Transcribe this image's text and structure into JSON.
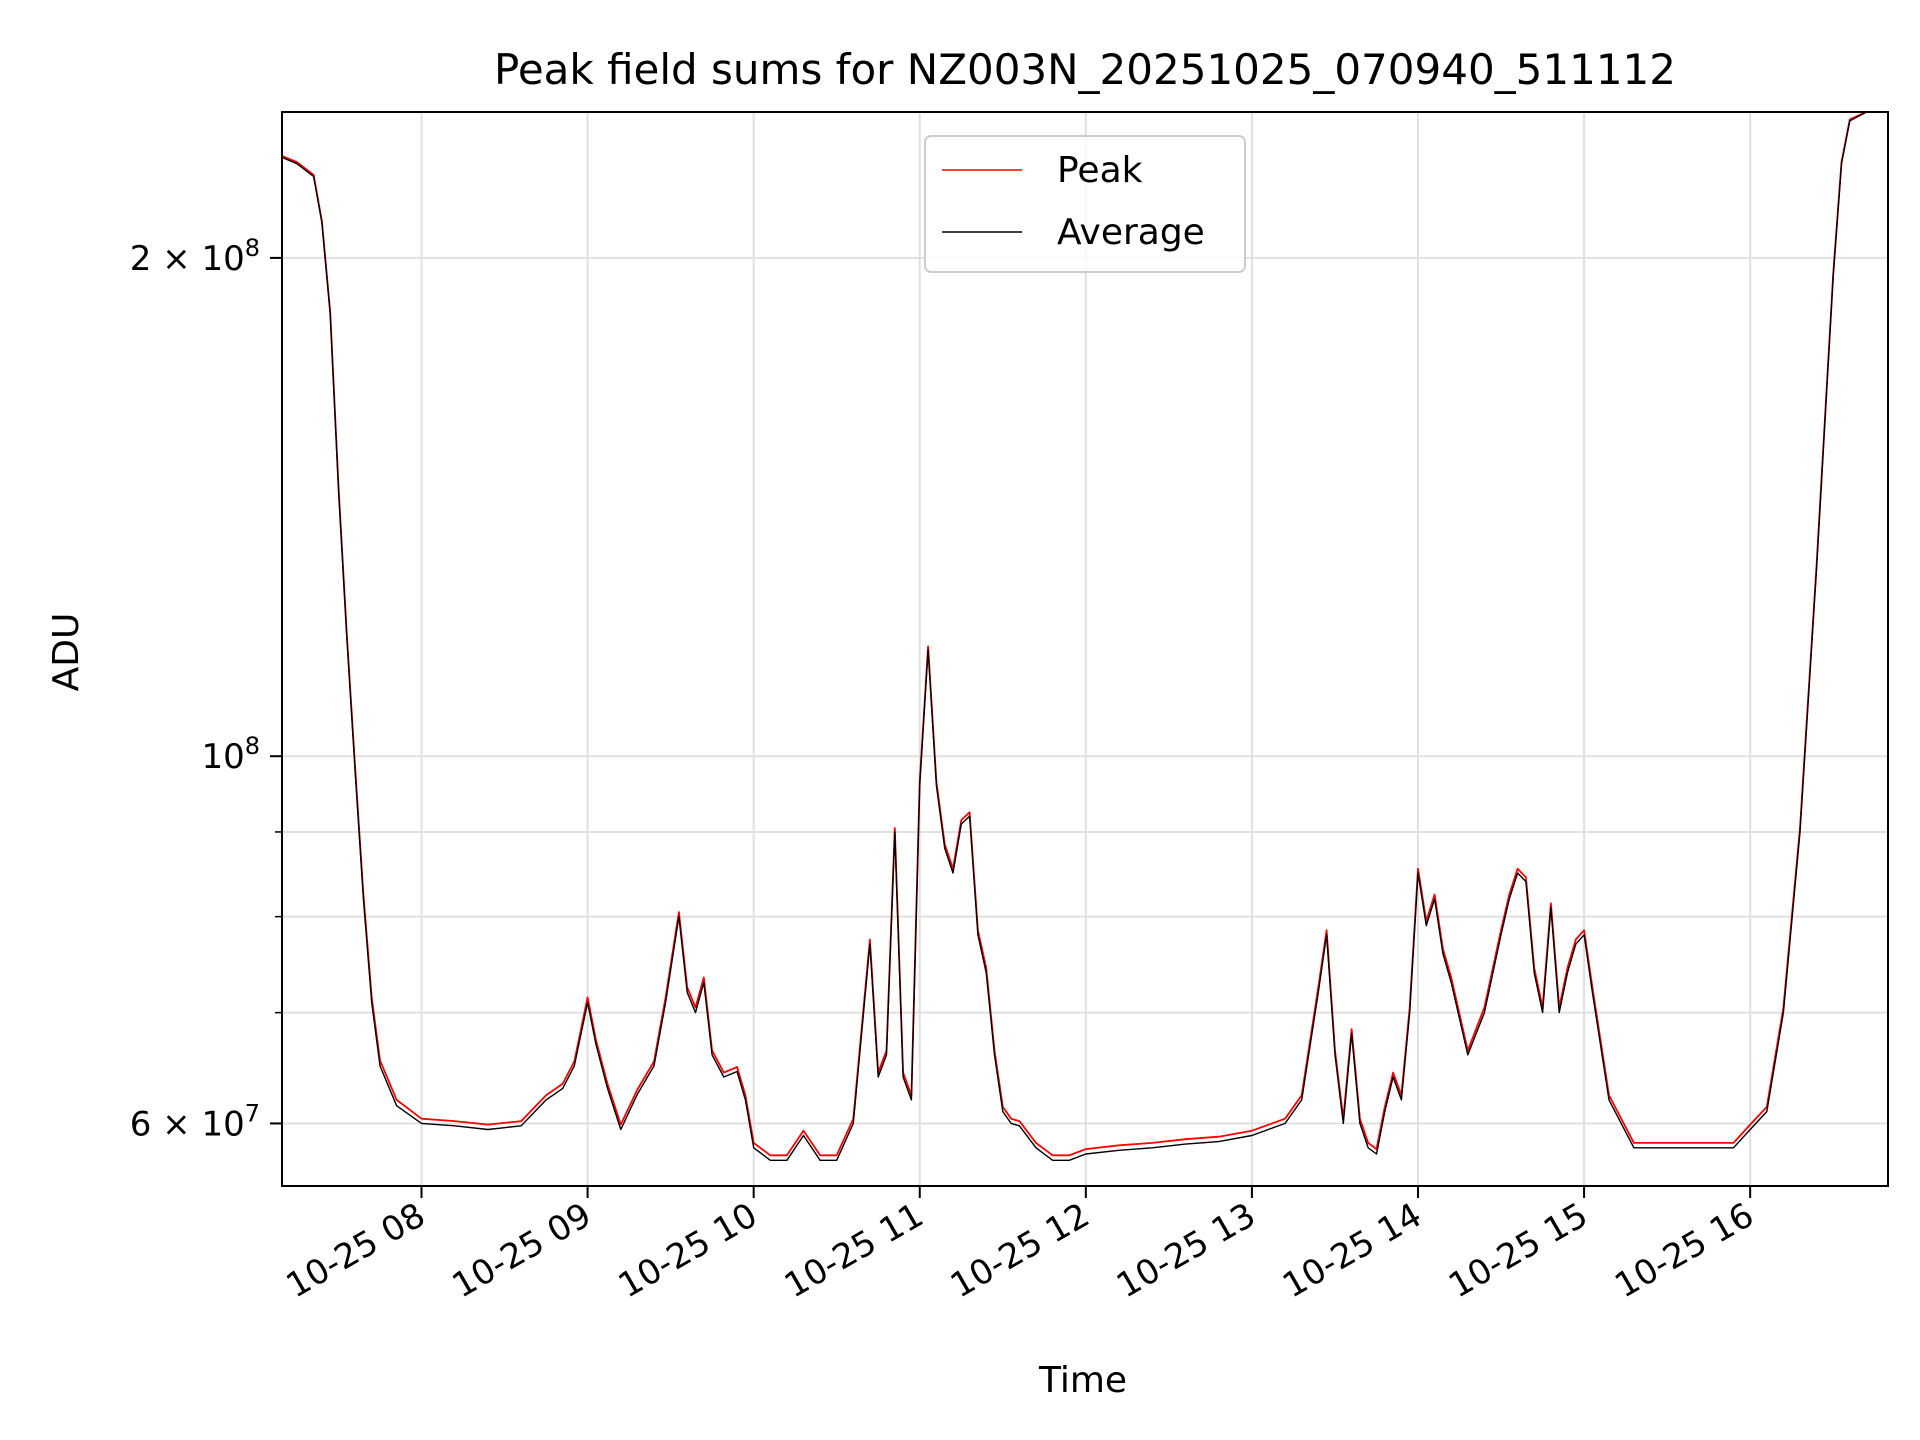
{
  "chart_data": {
    "type": "line",
    "title": "Peak field sums for NZ003N_20251025_070940_511112",
    "xlabel": "Time",
    "ylabel": "ADU",
    "yscale": "log",
    "ylim": [
      55000000,
      245000000
    ],
    "xlim_hours": [
      7.16,
      16.83
    ],
    "grid": true,
    "legend_position": "upper center",
    "legend": [
      "Peak",
      "Average"
    ],
    "x_ticks": [
      {
        "hour": 8,
        "label": "10-25 08"
      },
      {
        "hour": 9,
        "label": "10-25 09"
      },
      {
        "hour": 10,
        "label": "10-25 10"
      },
      {
        "hour": 11,
        "label": "10-25 11"
      },
      {
        "hour": 12,
        "label": "10-25 12"
      },
      {
        "hour": 13,
        "label": "10-25 13"
      },
      {
        "hour": 14,
        "label": "10-25 14"
      },
      {
        "hour": 15,
        "label": "10-25 15"
      },
      {
        "hour": 16,
        "label": "10-25 16"
      }
    ],
    "y_major_ticks": [
      {
        "value": 100000000,
        "mantissa": "",
        "base": "10",
        "exp": "8"
      },
      {
        "value": 200000000,
        "mantissa": "2 × ",
        "base": "10",
        "exp": "8"
      },
      {
        "value": 60000000,
        "mantissa": "6 × ",
        "base": "10",
        "exp": "7"
      }
    ],
    "y_minor_ticks": [
      60000000,
      70000000,
      80000000,
      90000000
    ],
    "series": [
      {
        "name": "Average",
        "color": "#000000",
        "hours": [
          7.16,
          7.25,
          7.35,
          7.4,
          7.45,
          7.5,
          7.55,
          7.6,
          7.65,
          7.7,
          7.75,
          7.85,
          8.0,
          8.2,
          8.4,
          8.6,
          8.75,
          8.85,
          8.92,
          9.0,
          9.05,
          9.12,
          9.2,
          9.3,
          9.4,
          9.47,
          9.55,
          9.6,
          9.65,
          9.7,
          9.75,
          9.82,
          9.9,
          9.95,
          10.0,
          10.1,
          10.2,
          10.3,
          10.4,
          10.5,
          10.6,
          10.7,
          10.75,
          10.8,
          10.85,
          10.9,
          10.95,
          11.0,
          11.05,
          11.1,
          11.15,
          11.2,
          11.25,
          11.3,
          11.35,
          11.4,
          11.45,
          11.5,
          11.55,
          11.6,
          11.7,
          11.8,
          11.9,
          12.0,
          12.2,
          12.4,
          12.6,
          12.8,
          13.0,
          13.2,
          13.3,
          13.4,
          13.45,
          13.5,
          13.55,
          13.6,
          13.65,
          13.7,
          13.75,
          13.8,
          13.85,
          13.9,
          13.95,
          14.0,
          14.05,
          14.1,
          14.15,
          14.2,
          14.3,
          14.4,
          14.5,
          14.55,
          14.6,
          14.65,
          14.7,
          14.75,
          14.8,
          14.85,
          14.9,
          14.95,
          15.0,
          15.05,
          15.15,
          15.3,
          15.5,
          15.7,
          15.9,
          16.0,
          16.1,
          16.2,
          16.3,
          16.4,
          16.5,
          16.55,
          16.6,
          16.7,
          16.83
        ],
        "values": [
          230000000,
          228000000,
          224000000,
          210000000,
          185000000,
          145000000,
          118000000,
          98000000,
          82000000,
          71000000,
          65000000,
          61500000,
          60000000,
          59800000,
          59500000,
          59800000,
          62000000,
          63000000,
          65000000,
          71000000,
          67000000,
          63000000,
          59500000,
          62500000,
          65000000,
          71000000,
          80000000,
          72000000,
          70000000,
          73000000,
          66000000,
          64000000,
          64500000,
          62000000,
          58000000,
          57000000,
          57000000,
          59000000,
          57000000,
          57000000,
          60000000,
          77000000,
          64000000,
          66000000,
          90000000,
          64000000,
          62000000,
          96000000,
          116000000,
          96000000,
          88000000,
          85000000,
          91000000,
          92000000,
          78000000,
          74000000,
          66000000,
          61000000,
          60000000,
          59800000,
          58000000,
          57000000,
          57000000,
          57500000,
          57800000,
          58000000,
          58300000,
          58500000,
          59000000,
          60000000,
          62000000,
          72000000,
          78000000,
          66000000,
          60000000,
          68000000,
          60000000,
          58000000,
          57500000,
          61000000,
          64000000,
          62000000,
          70000000,
          85000000,
          79000000,
          82000000,
          76000000,
          73000000,
          66000000,
          70000000,
          78000000,
          82000000,
          85000000,
          84000000,
          74000000,
          70000000,
          81000000,
          70000000,
          74000000,
          77000000,
          78000000,
          72000000,
          62000000,
          58000000,
          58000000,
          58000000,
          58000000,
          59500000,
          61000000,
          70000000,
          90000000,
          130000000,
          195000000,
          228000000,
          242000000,
          245000000,
          245000000
        ]
      },
      {
        "name": "Peak",
        "color": "#ff0000",
        "hours": [
          7.16,
          7.25,
          7.35,
          7.4,
          7.45,
          7.5,
          7.55,
          7.6,
          7.65,
          7.7,
          7.75,
          7.85,
          8.0,
          8.2,
          8.4,
          8.6,
          8.75,
          8.85,
          8.92,
          9.0,
          9.05,
          9.12,
          9.2,
          9.3,
          9.4,
          9.47,
          9.55,
          9.6,
          9.65,
          9.7,
          9.75,
          9.82,
          9.9,
          9.95,
          10.0,
          10.1,
          10.2,
          10.3,
          10.4,
          10.5,
          10.6,
          10.7,
          10.75,
          10.8,
          10.85,
          10.9,
          10.95,
          11.0,
          11.05,
          11.1,
          11.15,
          11.2,
          11.25,
          11.3,
          11.35,
          11.4,
          11.45,
          11.5,
          11.55,
          11.6,
          11.7,
          11.8,
          11.9,
          12.0,
          12.2,
          12.4,
          12.6,
          12.8,
          13.0,
          13.2,
          13.3,
          13.4,
          13.45,
          13.5,
          13.55,
          13.6,
          13.65,
          13.7,
          13.75,
          13.8,
          13.85,
          13.9,
          13.95,
          14.0,
          14.05,
          14.1,
          14.15,
          14.2,
          14.3,
          14.4,
          14.5,
          14.55,
          14.6,
          14.65,
          14.7,
          14.75,
          14.8,
          14.85,
          14.9,
          14.95,
          15.0,
          15.05,
          15.15,
          15.3,
          15.5,
          15.7,
          15.9,
          16.0,
          16.1,
          16.2,
          16.3,
          16.4,
          16.5,
          16.55,
          16.6,
          16.7,
          16.83
        ],
        "values": [
          230500000,
          228500000,
          224500000,
          210500000,
          185500000,
          145500000,
          118500000,
          98500000,
          82500000,
          71500000,
          65500000,
          62000000,
          60400000,
          60200000,
          59900000,
          60200000,
          62400000,
          63400000,
          65400000,
          71500000,
          67400000,
          63400000,
          59900000,
          62900000,
          65400000,
          71500000,
          80500000,
          72500000,
          70500000,
          73500000,
          66400000,
          64400000,
          64900000,
          62400000,
          58400000,
          57400000,
          57400000,
          59400000,
          57400000,
          57400000,
          60400000,
          77500000,
          64400000,
          66400000,
          90500000,
          64400000,
          62400000,
          96500000,
          116500000,
          96500000,
          88500000,
          85500000,
          91500000,
          92500000,
          78500000,
          74500000,
          66400000,
          61400000,
          60400000,
          60200000,
          58400000,
          57400000,
          57400000,
          57900000,
          58200000,
          58400000,
          58700000,
          58900000,
          59400000,
          60400000,
          62400000,
          72500000,
          78500000,
          66400000,
          60400000,
          68400000,
          60400000,
          58400000,
          57900000,
          61400000,
          64400000,
          62400000,
          70500000,
          85500000,
          79500000,
          82500000,
          76500000,
          73500000,
          66400000,
          70500000,
          78500000,
          82500000,
          85500000,
          84500000,
          74500000,
          70500000,
          81500000,
          70500000,
          74500000,
          77500000,
          78500000,
          72500000,
          62400000,
          58400000,
          58400000,
          58400000,
          58400000,
          59900000,
          61400000,
          70500000,
          90500000,
          130500000,
          195500000,
          228500000,
          242500000,
          245000000,
          245000000
        ]
      }
    ]
  }
}
